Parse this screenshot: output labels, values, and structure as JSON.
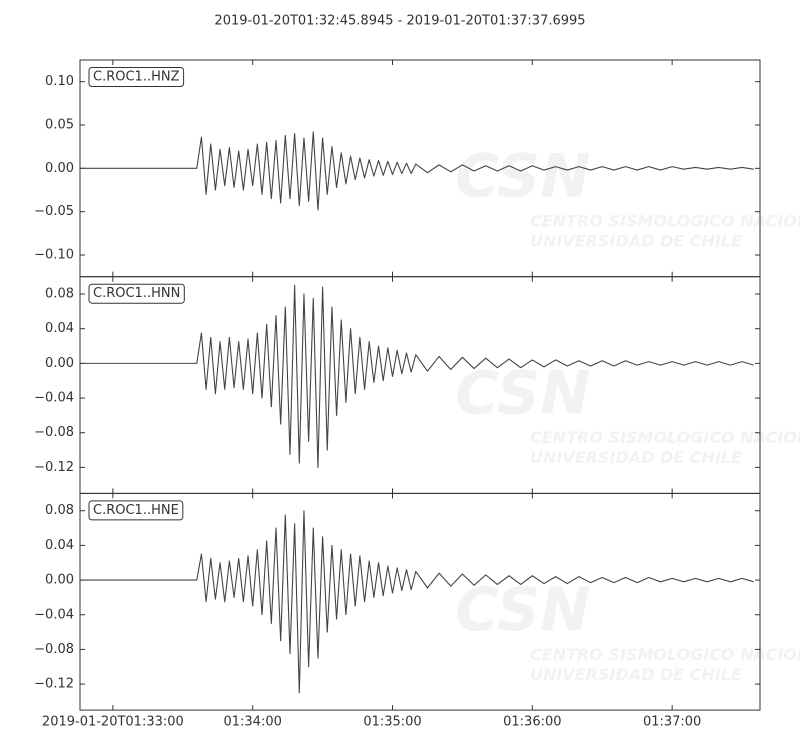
{
  "chart_data": {
    "type": "line",
    "title": "2019-01-20T01:32:45.8945  -  2019-01-20T01:37:37.6995",
    "watermark": {
      "logo": "CSN",
      "line1": "CENTRO SISMOLOGICO NACIONAL",
      "line2": "UNIVERSIDAD DE CHILE"
    },
    "xlim": [
      "01:32:45.8945",
      "01:37:37.6995"
    ],
    "xticks": [
      {
        "value": "01:33:00",
        "label": "2019-01-20T01:33:00"
      },
      "01:34:00",
      "01:35:00",
      "01:36:00",
      "01:37:00"
    ],
    "x": [
      "01:32:46",
      "01:33:36",
      "01:33:38",
      "01:33:40",
      "01:33:42",
      "01:33:44",
      "01:33:46",
      "01:33:48",
      "01:33:50",
      "01:33:52",
      "01:33:54",
      "01:33:56",
      "01:33:58",
      "01:34:00",
      "01:34:02",
      "01:34:04",
      "01:34:06",
      "01:34:08",
      "01:34:10",
      "01:34:12",
      "01:34:14",
      "01:34:16",
      "01:34:18",
      "01:34:20",
      "01:34:22",
      "01:34:24",
      "01:34:26",
      "01:34:28",
      "01:34:30",
      "01:34:32",
      "01:34:34",
      "01:34:36",
      "01:34:38",
      "01:34:40",
      "01:34:42",
      "01:34:44",
      "01:34:46",
      "01:34:48",
      "01:34:50",
      "01:34:52",
      "01:34:54",
      "01:34:56",
      "01:34:58",
      "01:35:00",
      "01:35:02",
      "01:35:04",
      "01:35:06",
      "01:35:08",
      "01:35:10",
      "01:35:15",
      "01:35:20",
      "01:35:25",
      "01:35:30",
      "01:35:35",
      "01:35:40",
      "01:35:45",
      "01:35:50",
      "01:35:55",
      "01:36:00",
      "01:36:05",
      "01:36:10",
      "01:36:15",
      "01:36:20",
      "01:36:25",
      "01:36:30",
      "01:36:35",
      "01:36:40",
      "01:36:45",
      "01:36:50",
      "01:36:55",
      "01:37:00",
      "01:37:05",
      "01:37:10",
      "01:37:15",
      "01:37:20",
      "01:37:25",
      "01:37:30",
      "01:37:35"
    ],
    "series": [
      {
        "name": "C.ROC1..HNZ",
        "color": "#444444",
        "ylim": [
          -0.125,
          0.125
        ],
        "yticks": [
          {
            "value": 0.1,
            "label": "0.10"
          },
          {
            "value": 0.05,
            "label": "0.05"
          },
          {
            "value": 0,
            "label": "0.00"
          },
          {
            "value": -0.05,
            "label": "−0.05"
          },
          {
            "value": -0.1,
            "label": "−0.10"
          }
        ],
        "values": [
          0,
          0,
          0.036,
          -0.03,
          0.028,
          -0.025,
          0.022,
          -0.02,
          0.024,
          -0.022,
          0.02,
          -0.025,
          0.022,
          -0.02,
          0.028,
          -0.03,
          0.03,
          -0.035,
          0.032,
          -0.04,
          0.038,
          -0.035,
          0.04,
          -0.043,
          0.035,
          -0.038,
          0.042,
          -0.048,
          0.035,
          -0.03,
          0.025,
          -0.022,
          0.018,
          -0.018,
          0.014,
          -0.013,
          0.012,
          -0.011,
          0.01,
          -0.009,
          0.009,
          -0.008,
          0.008,
          -0.007,
          0.007,
          -0.006,
          0.006,
          -0.006,
          0.005,
          -0.005,
          0.004,
          -0.004,
          0.004,
          -0.003,
          0.003,
          -0.003,
          0.003,
          -0.003,
          0.003,
          -0.002,
          0.002,
          -0.002,
          0.002,
          -0.002,
          0.002,
          -0.002,
          0.002,
          -0.002,
          0.002,
          -0.002,
          0.002,
          -0.001,
          0.001,
          -0.001,
          0.001,
          -0.001,
          0.001,
          -0.001
        ]
      },
      {
        "name": "C.ROC1..HNN",
        "color": "#444444",
        "ylim": [
          -0.15,
          0.1
        ],
        "yticks": [
          {
            "value": 0.08,
            "label": "0.08"
          },
          {
            "value": 0.04,
            "label": "0.04"
          },
          {
            "value": 0,
            "label": "0.00"
          },
          {
            "value": -0.04,
            "label": "−0.04"
          },
          {
            "value": -0.08,
            "label": "−0.08"
          },
          {
            "value": -0.12,
            "label": "−0.12"
          }
        ],
        "values": [
          0,
          0,
          0.035,
          -0.03,
          0.03,
          -0.035,
          0.025,
          -0.03,
          0.03,
          -0.028,
          0.025,
          -0.03,
          0.028,
          -0.035,
          0.035,
          -0.04,
          0.045,
          -0.05,
          0.055,
          -0.07,
          0.065,
          -0.105,
          0.09,
          -0.115,
          0.08,
          -0.09,
          0.075,
          -0.12,
          0.088,
          -0.1,
          0.065,
          -0.06,
          0.05,
          -0.045,
          0.04,
          -0.035,
          0.03,
          -0.03,
          0.025,
          -0.022,
          0.02,
          -0.02,
          0.018,
          -0.015,
          0.015,
          -0.012,
          0.012,
          -0.01,
          0.01,
          -0.009,
          0.008,
          -0.007,
          0.007,
          -0.006,
          0.006,
          -0.005,
          0.005,
          -0.005,
          0.004,
          -0.004,
          0.004,
          -0.003,
          0.003,
          -0.003,
          0.003,
          -0.003,
          0.003,
          -0.002,
          0.002,
          -0.002,
          0.002,
          -0.002,
          0.002,
          -0.002,
          0.002,
          -0.002,
          0.002,
          -0.002
        ]
      },
      {
        "name": "C.ROC1..HNE",
        "color": "#444444",
        "ylim": [
          -0.15,
          0.1
        ],
        "yticks": [
          {
            "value": 0.08,
            "label": "0.08"
          },
          {
            "value": 0.04,
            "label": "0.04"
          },
          {
            "value": 0,
            "label": "0.00"
          },
          {
            "value": -0.04,
            "label": "−0.04"
          },
          {
            "value": -0.08,
            "label": "−0.08"
          },
          {
            "value": -0.12,
            "label": "−0.12"
          }
        ],
        "values": [
          0,
          0,
          0.03,
          -0.025,
          0.025,
          -0.022,
          0.02,
          -0.025,
          0.022,
          -0.02,
          0.025,
          -0.025,
          0.028,
          -0.03,
          0.035,
          -0.04,
          0.045,
          -0.05,
          0.06,
          -0.07,
          0.075,
          -0.085,
          0.065,
          -0.13,
          0.08,
          -0.1,
          0.06,
          -0.09,
          0.05,
          -0.06,
          0.04,
          -0.045,
          0.035,
          -0.04,
          0.03,
          -0.03,
          0.028,
          -0.025,
          0.022,
          -0.02,
          0.02,
          -0.018,
          0.016,
          -0.015,
          0.014,
          -0.012,
          0.012,
          -0.011,
          0.01,
          -0.009,
          0.008,
          -0.007,
          0.007,
          -0.006,
          0.006,
          -0.005,
          0.005,
          -0.005,
          0.005,
          -0.004,
          0.004,
          -0.004,
          0.004,
          -0.003,
          0.003,
          -0.003,
          0.003,
          -0.003,
          0.003,
          -0.002,
          0.002,
          -0.002,
          0.002,
          -0.002,
          0.002,
          -0.002,
          0.002,
          -0.002
        ]
      }
    ]
  }
}
